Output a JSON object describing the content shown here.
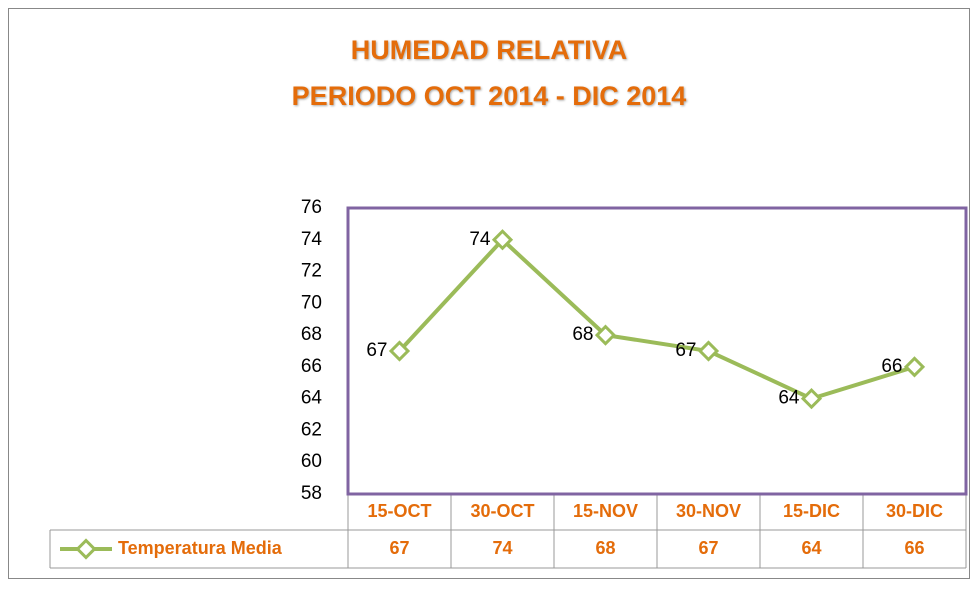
{
  "chart_data": {
    "type": "line",
    "title": [
      "HUMEDAD RELATIVA",
      "PERIODO OCT 2014 - DIC 2014"
    ],
    "categories": [
      "15-OCT",
      "30-OCT",
      "15-NOV",
      "30-NOV",
      "15-DIC",
      "30-DIC"
    ],
    "series": [
      {
        "name": "Temperatura Media",
        "color": "#9bbb59",
        "values": [
          67,
          74,
          68,
          67,
          64,
          66
        ]
      }
    ],
    "ylim": [
      58,
      76
    ],
    "yticks": [
      58,
      60,
      62,
      64,
      66,
      68,
      70,
      72,
      74,
      76
    ],
    "grid": false,
    "legend": "bottom",
    "border_color": "#8064a2"
  }
}
